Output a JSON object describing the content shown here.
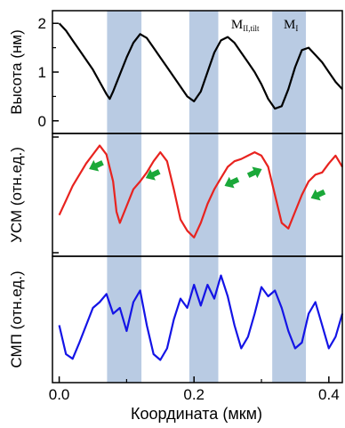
{
  "chart_data": {
    "type": "line",
    "xlabel": "Координата (мкм)",
    "x_ticks": [
      "0.0",
      "0.2",
      "0.4"
    ],
    "xlim": [
      -0.01,
      0.42
    ],
    "bands": [
      [
        0.071,
        0.122
      ],
      [
        0.193,
        0.236
      ],
      [
        0.316,
        0.366
      ]
    ],
    "band_color": "#b9cbe3",
    "panels": [
      {
        "ylabel": "Высота (нм)",
        "y_ticks": [
          "0",
          "1",
          "2"
        ],
        "ylim": [
          -0.15,
          2.15
        ],
        "series": [
          {
            "color": "#000000",
            "x": [
              0.0,
              0.01,
              0.02,
              0.03,
              0.04,
              0.05,
              0.06,
              0.07,
              0.075,
              0.08,
              0.09,
              0.1,
              0.11,
              0.12,
              0.13,
              0.14,
              0.15,
              0.16,
              0.17,
              0.18,
              0.19,
              0.2,
              0.21,
              0.22,
              0.23,
              0.24,
              0.25,
              0.26,
              0.27,
              0.28,
              0.29,
              0.3,
              0.31,
              0.32,
              0.33,
              0.34,
              0.35,
              0.36,
              0.37,
              0.38,
              0.39,
              0.4,
              0.41,
              0.42
            ],
            "y": [
              2.0,
              1.85,
              1.65,
              1.45,
              1.25,
              1.05,
              0.8,
              0.55,
              0.45,
              0.6,
              0.95,
              1.3,
              1.6,
              1.78,
              1.7,
              1.5,
              1.3,
              1.1,
              0.9,
              0.7,
              0.5,
              0.4,
              0.6,
              1.0,
              1.4,
              1.65,
              1.72,
              1.6,
              1.4,
              1.2,
              1.0,
              0.75,
              0.45,
              0.25,
              0.3,
              0.65,
              1.1,
              1.45,
              1.5,
              1.35,
              1.2,
              1.0,
              0.8,
              0.65
            ]
          }
        ],
        "annotations": [
          {
            "text": "M",
            "sub": "II,tilt",
            "x": 0.255,
            "y": 1.95
          },
          {
            "text": "M",
            "sub": "I",
            "x": 0.333,
            "y": 1.95
          }
        ]
      },
      {
        "ylabel": "УСМ (отн.ед.)",
        "y_ticks": [
          "",
          ""
        ],
        "ylim": [
          0,
          10
        ],
        "series": [
          {
            "color": "#e8231f",
            "x": [
              0.0,
              0.01,
              0.02,
              0.03,
              0.04,
              0.05,
              0.06,
              0.07,
              0.08,
              0.085,
              0.09,
              0.1,
              0.11,
              0.12,
              0.13,
              0.14,
              0.15,
              0.16,
              0.17,
              0.18,
              0.19,
              0.2,
              0.21,
              0.22,
              0.23,
              0.24,
              0.25,
              0.26,
              0.27,
              0.28,
              0.29,
              0.3,
              0.31,
              0.32,
              0.33,
              0.34,
              0.35,
              0.36,
              0.37,
              0.38,
              0.39,
              0.4,
              0.41,
              0.42
            ],
            "y": [
              3.2,
              4.5,
              5.8,
              6.8,
              7.8,
              8.6,
              9.4,
              8.6,
              6.2,
              3.5,
              2.5,
              4.0,
              5.5,
              6.2,
              7.0,
              8.0,
              8.8,
              8.0,
              5.5,
              2.8,
              1.8,
              1.2,
              2.5,
              4.2,
              5.5,
              6.5,
              7.5,
              8.0,
              8.2,
              8.5,
              8.8,
              8.5,
              7.5,
              5.0,
              2.5,
              2.0,
              3.5,
              5.0,
              6.2,
              6.8,
              7.0,
              7.8,
              8.5,
              7.5
            ]
          }
        ],
        "markers": [
          {
            "x": 0.055,
            "y": 7.6,
            "dir": "left"
          },
          {
            "x": 0.139,
            "y": 6.8,
            "dir": "left"
          },
          {
            "x": 0.256,
            "y": 6.1,
            "dir": "left"
          },
          {
            "x": 0.29,
            "y": 7.0,
            "dir": "right"
          },
          {
            "x": 0.384,
            "y": 5.0,
            "dir": "left"
          }
        ],
        "marker_color": "#1aa839"
      },
      {
        "ylabel": "СМП (отн.ед.)",
        "y_ticks": [],
        "ylim": [
          0,
          10
        ],
        "series": [
          {
            "color": "#1414e6",
            "x": [
              0.0,
              0.01,
              0.02,
              0.03,
              0.04,
              0.05,
              0.06,
              0.07,
              0.08,
              0.09,
              0.1,
              0.11,
              0.12,
              0.13,
              0.14,
              0.15,
              0.16,
              0.17,
              0.18,
              0.19,
              0.2,
              0.21,
              0.22,
              0.23,
              0.24,
              0.25,
              0.26,
              0.27,
              0.28,
              0.29,
              0.3,
              0.31,
              0.32,
              0.33,
              0.34,
              0.35,
              0.36,
              0.37,
              0.38,
              0.39,
              0.4,
              0.41,
              0.42
            ],
            "y": [
              4.5,
              2.0,
              1.6,
              3.0,
              4.5,
              6.0,
              6.5,
              7.2,
              5.5,
              6.0,
              4.0,
              6.5,
              7.5,
              4.5,
              2.0,
              1.5,
              2.5,
              5.0,
              6.8,
              6.0,
              8.0,
              6.2,
              8.0,
              6.8,
              8.8,
              7.0,
              4.5,
              2.5,
              3.5,
              5.5,
              7.8,
              7.0,
              7.5,
              6.0,
              4.0,
              2.5,
              3.0,
              5.5,
              6.5,
              4.5,
              2.5,
              3.5,
              5.5
            ]
          }
        ]
      }
    ]
  }
}
